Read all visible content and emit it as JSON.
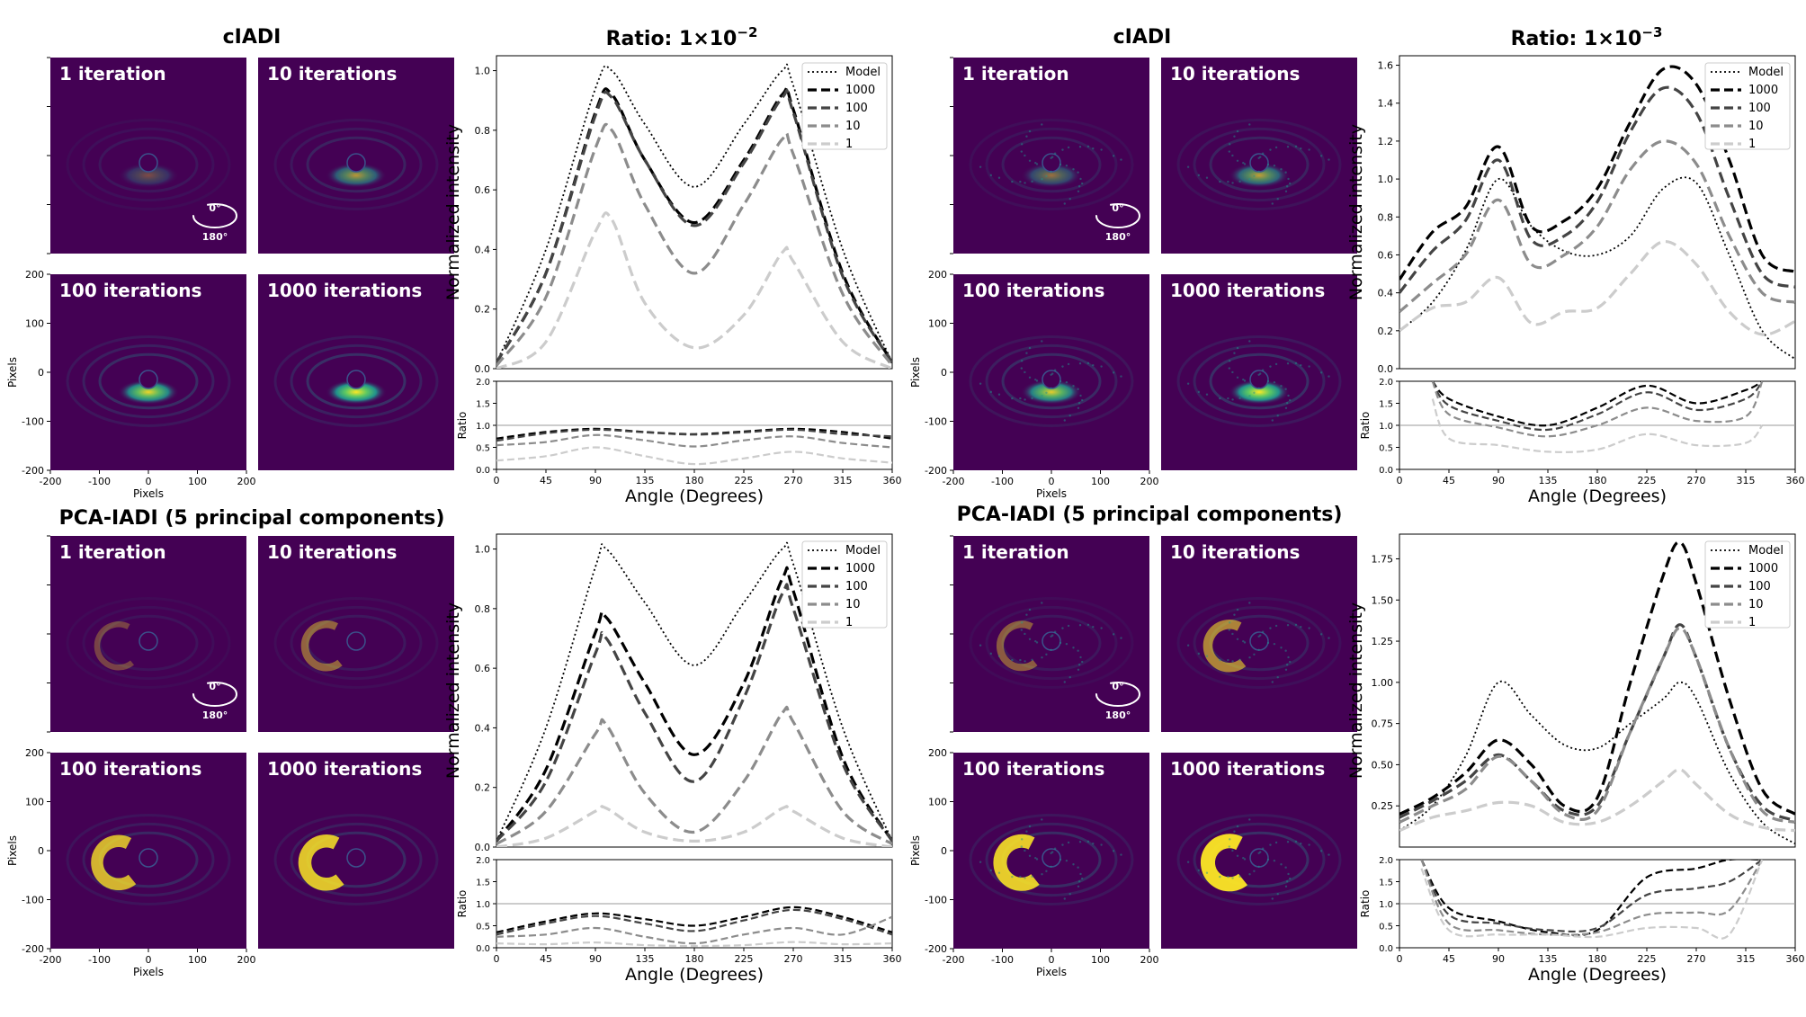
{
  "figure": {
    "column_titles": [
      "cIADI",
      "Ratio: 1×10",
      "cIADI",
      "Ratio: 1×10"
    ],
    "ratio_exponents": [
      "−2",
      "−3"
    ],
    "row_titles": [
      "PCA-IADI (5 principal components)",
      "PCA-IADI (5 principal components)"
    ],
    "panel_labels": [
      "1 iteration",
      "10 iterations",
      "100 iterations",
      "1000 iterations"
    ],
    "orientation_labels": [
      "0°",
      "180°"
    ],
    "image_axis": {
      "xlabel": "Pixels",
      "ylabel": "Pixels",
      "ticks": [
        "-200",
        "-100",
        "0",
        "100",
        "200"
      ]
    },
    "colors": {
      "colormap_low": "#440154",
      "colormap_mid": "#21918c",
      "colormap_high": "#fde725"
    }
  },
  "chart_data": [
    {
      "type": "line",
      "panel": "top-left profile, ratio 1×10^-2 (cIADI)",
      "xlabel": "Angle (Degrees)",
      "ylabel": "Normalized intensity",
      "xlim": [
        0,
        360
      ],
      "ylim": [
        0,
        1.05
      ],
      "xticks": [
        0,
        45,
        90,
        135,
        180,
        225,
        270,
        315,
        360
      ],
      "yticks": [
        0.0,
        0.2,
        0.4,
        0.6,
        0.8,
        1.0
      ],
      "x": [
        0,
        45,
        90,
        105,
        135,
        180,
        225,
        260,
        270,
        315,
        360
      ],
      "legend_position": "top-right",
      "series": [
        {
          "name": "Model",
          "style": "dotted",
          "color": "#000000",
          "values": [
            0.02,
            0.4,
            0.94,
            1.0,
            0.82,
            0.61,
            0.82,
            1.0,
            0.95,
            0.4,
            0.02
          ]
        },
        {
          "name": "1000",
          "style": "dashed",
          "color": "#000000",
          "values": [
            0.02,
            0.32,
            0.86,
            0.92,
            0.7,
            0.49,
            0.7,
            0.92,
            0.87,
            0.32,
            0.02
          ]
        },
        {
          "name": "100",
          "style": "dashed",
          "color": "#444444",
          "values": [
            0.02,
            0.32,
            0.85,
            0.91,
            0.7,
            0.48,
            0.69,
            0.91,
            0.86,
            0.31,
            0.02
          ]
        },
        {
          "name": "10",
          "style": "dashed",
          "color": "#8c8c8c",
          "values": [
            0.01,
            0.24,
            0.74,
            0.8,
            0.55,
            0.32,
            0.55,
            0.77,
            0.72,
            0.25,
            0.01
          ]
        },
        {
          "name": "1",
          "style": "dashed",
          "color": "#cccccc",
          "values": [
            0.0,
            0.09,
            0.46,
            0.5,
            0.22,
            0.07,
            0.18,
            0.39,
            0.36,
            0.09,
            0.0
          ]
        }
      ],
      "ratio_panel": {
        "ylabel": "Ratio",
        "ylim": [
          0,
          2.0
        ],
        "yticks": [
          0.0,
          0.5,
          1.0,
          1.5,
          2.0
        ],
        "reference": 1.0,
        "x": [
          0,
          45,
          90,
          135,
          180,
          225,
          270,
          315,
          360
        ],
        "series": [
          {
            "name": "1000",
            "values": [
              0.7,
              0.85,
              0.92,
              0.85,
              0.8,
              0.86,
              0.92,
              0.85,
              0.7
            ]
          },
          {
            "name": "100",
            "values": [
              0.65,
              0.82,
              0.9,
              0.84,
              0.79,
              0.84,
              0.9,
              0.8,
              0.75
            ]
          },
          {
            "name": "10",
            "values": [
              0.55,
              0.62,
              0.78,
              0.66,
              0.52,
              0.66,
              0.75,
              0.6,
              0.5
            ]
          },
          {
            "name": "1",
            "values": [
              0.2,
              0.3,
              0.5,
              0.3,
              0.12,
              0.25,
              0.4,
              0.25,
              0.15
            ]
          }
        ]
      }
    },
    {
      "type": "line",
      "panel": "top-right profile, ratio 1×10^-3 (cIADI)",
      "xlabel": "Angle (Degrees)",
      "ylabel": "Normalized intensity",
      "xlim": [
        0,
        360
      ],
      "ylim": [
        0,
        1.65
      ],
      "xticks": [
        0,
        45,
        90,
        135,
        180,
        225,
        270,
        315,
        360
      ],
      "yticks": [
        0.0,
        0.2,
        0.4,
        0.6,
        0.8,
        1.0,
        1.2,
        1.4,
        1.6
      ],
      "x": [
        0,
        30,
        60,
        90,
        120,
        150,
        180,
        210,
        240,
        270,
        300,
        330,
        360
      ],
      "legend_position": "top-right",
      "series": [
        {
          "name": "Model",
          "style": "dotted",
          "color": "#000000",
          "values": [
            0.2,
            0.35,
            0.62,
            1.0,
            0.75,
            0.62,
            0.6,
            0.7,
            0.95,
            0.98,
            0.6,
            0.2,
            0.05
          ]
        },
        {
          "name": "1000",
          "style": "dashed",
          "color": "#000000",
          "values": [
            0.47,
            0.72,
            0.85,
            1.17,
            0.75,
            0.78,
            0.95,
            1.3,
            1.58,
            1.5,
            1.1,
            0.6,
            0.51
          ]
        },
        {
          "name": "100",
          "style": "dashed",
          "color": "#444444",
          "values": [
            0.4,
            0.62,
            0.78,
            1.1,
            0.68,
            0.7,
            0.88,
            1.25,
            1.48,
            1.35,
            0.9,
            0.5,
            0.43
          ]
        },
        {
          "name": "10",
          "style": "dashed",
          "color": "#8c8c8c",
          "values": [
            0.3,
            0.45,
            0.6,
            0.89,
            0.55,
            0.6,
            0.75,
            1.05,
            1.2,
            1.08,
            0.7,
            0.4,
            0.35
          ]
        },
        {
          "name": "1",
          "style": "dashed",
          "color": "#cccccc",
          "values": [
            0.2,
            0.32,
            0.35,
            0.48,
            0.24,
            0.3,
            0.32,
            0.5,
            0.67,
            0.55,
            0.3,
            0.18,
            0.25
          ]
        }
      ],
      "ratio_panel": {
        "ylabel": "Ratio",
        "ylim": [
          0,
          2.0
        ],
        "yticks": [
          0.0,
          0.5,
          1.0,
          1.5,
          2.0
        ],
        "reference": 1.0,
        "x": [
          30,
          45,
          90,
          135,
          180,
          225,
          270,
          315,
          330
        ],
        "series": [
          {
            "name": "1000",
            "values": [
              2.0,
              1.6,
              1.2,
              1.0,
              1.4,
              1.9,
              1.5,
              1.8,
              2.0
            ]
          },
          {
            "name": "100",
            "values": [
              2.0,
              1.45,
              1.1,
              0.9,
              1.25,
              1.75,
              1.35,
              1.6,
              2.0
            ]
          },
          {
            "name": "10",
            "values": [
              2.0,
              1.25,
              0.95,
              0.75,
              1.0,
              1.4,
              1.1,
              1.2,
              2.0
            ]
          },
          {
            "name": "1",
            "values": [
              1.6,
              0.7,
              0.55,
              0.4,
              0.45,
              0.8,
              0.55,
              0.6,
              1.0
            ]
          }
        ]
      }
    },
    {
      "type": "line",
      "panel": "bottom-left profile, ratio 1×10^-2 (PCA-IADI)",
      "xlabel": "Angle (Degrees)",
      "ylabel": "Normalized intensity",
      "xlim": [
        0,
        360
      ],
      "ylim": [
        0,
        1.05
      ],
      "xticks": [
        0,
        45,
        90,
        135,
        180,
        225,
        270,
        315,
        360
      ],
      "yticks": [
        0.0,
        0.2,
        0.4,
        0.6,
        0.8,
        1.0
      ],
      "x": [
        0,
        45,
        90,
        100,
        135,
        180,
        225,
        260,
        270,
        315,
        360
      ],
      "legend_position": "top-right",
      "series": [
        {
          "name": "Model",
          "style": "dotted",
          "color": "#000000",
          "values": [
            0.02,
            0.4,
            0.94,
            1.0,
            0.82,
            0.61,
            0.82,
            1.0,
            0.95,
            0.4,
            0.02
          ]
        },
        {
          "name": "1000",
          "style": "dashed",
          "color": "#000000",
          "values": [
            0.02,
            0.26,
            0.72,
            0.77,
            0.55,
            0.31,
            0.55,
            0.9,
            0.86,
            0.3,
            0.02
          ]
        },
        {
          "name": "100",
          "style": "dashed",
          "color": "#444444",
          "values": [
            0.02,
            0.22,
            0.65,
            0.7,
            0.45,
            0.22,
            0.5,
            0.85,
            0.8,
            0.28,
            0.02
          ]
        },
        {
          "name": "10",
          "style": "dashed",
          "color": "#8c8c8c",
          "values": [
            0.01,
            0.12,
            0.38,
            0.41,
            0.18,
            0.05,
            0.22,
            0.45,
            0.42,
            0.12,
            0.01
          ]
        },
        {
          "name": "1",
          "style": "dashed",
          "color": "#cccccc",
          "values": [
            0.0,
            0.03,
            0.12,
            0.13,
            0.05,
            0.02,
            0.05,
            0.13,
            0.12,
            0.03,
            0.0
          ]
        }
      ],
      "ratio_panel": {
        "ylabel": "Ratio",
        "ylim": [
          0,
          2.0
        ],
        "yticks": [
          0.0,
          0.5,
          1.0,
          1.5,
          2.0
        ],
        "reference": 1.0,
        "x": [
          0,
          45,
          90,
          135,
          180,
          225,
          270,
          315,
          360
        ],
        "series": [
          {
            "name": "1000",
            "values": [
              0.35,
              0.6,
              0.78,
              0.65,
              0.5,
              0.7,
              0.92,
              0.7,
              0.35
            ]
          },
          {
            "name": "100",
            "values": [
              0.3,
              0.55,
              0.72,
              0.55,
              0.38,
              0.62,
              0.86,
              0.65,
              0.3
            ]
          },
          {
            "name": "10",
            "values": [
              0.25,
              0.3,
              0.45,
              0.25,
              0.1,
              0.3,
              0.45,
              0.3,
              0.7
            ]
          },
          {
            "name": "1",
            "values": [
              0.1,
              0.08,
              0.12,
              0.06,
              0.04,
              0.06,
              0.13,
              0.08,
              0.1
            ]
          }
        ]
      }
    },
    {
      "type": "line",
      "panel": "bottom-right profile, ratio 1×10^-3 (PCA-IADI)",
      "xlabel": "Angle (Degrees)",
      "ylabel": "Normalized intensity",
      "xlim": [
        0,
        360
      ],
      "ylim": [
        0,
        1.9
      ],
      "xticks": [
        0,
        45,
        90,
        135,
        180,
        225,
        270,
        315,
        360
      ],
      "yticks": [
        0.25,
        0.5,
        0.75,
        1.0,
        1.25,
        1.5,
        1.75
      ],
      "x": [
        0,
        30,
        60,
        90,
        120,
        150,
        180,
        210,
        240,
        255,
        270,
        300,
        330,
        360
      ],
      "legend_position": "top-right",
      "series": [
        {
          "name": "Model",
          "style": "dotted",
          "color": "#000000",
          "values": [
            0.1,
            0.25,
            0.55,
            1.0,
            0.8,
            0.62,
            0.6,
            0.75,
            0.9,
            1.0,
            0.9,
            0.45,
            0.15,
            0.02
          ]
        },
        {
          "name": "1000",
          "style": "dashed",
          "color": "#000000",
          "values": [
            0.2,
            0.3,
            0.45,
            0.65,
            0.5,
            0.25,
            0.3,
            1.0,
            1.65,
            1.85,
            1.6,
            0.9,
            0.35,
            0.2
          ]
        },
        {
          "name": "100",
          "style": "dashed",
          "color": "#444444",
          "values": [
            0.18,
            0.28,
            0.4,
            0.56,
            0.4,
            0.22,
            0.25,
            0.7,
            1.15,
            1.35,
            1.15,
            0.6,
            0.25,
            0.16
          ]
        },
        {
          "name": "10",
          "style": "dashed",
          "color": "#8c8c8c",
          "values": [
            0.15,
            0.25,
            0.35,
            0.55,
            0.4,
            0.2,
            0.22,
            0.7,
            1.15,
            1.33,
            1.15,
            0.6,
            0.22,
            0.15
          ]
        },
        {
          "name": "1",
          "style": "dashed",
          "color": "#cccccc",
          "values": [
            0.1,
            0.18,
            0.22,
            0.27,
            0.25,
            0.15,
            0.15,
            0.25,
            0.4,
            0.47,
            0.38,
            0.2,
            0.12,
            0.1
          ]
        }
      ],
      "ratio_panel": {
        "ylabel": "Ratio",
        "ylim": [
          0,
          2.0
        ],
        "yticks": [
          0.0,
          0.5,
          1.0,
          1.5,
          2.0
        ],
        "reference": 1.0,
        "x": [
          20,
          45,
          90,
          135,
          180,
          225,
          270,
          300,
          330
        ],
        "series": [
          {
            "name": "1000",
            "values": [
              2.0,
              0.9,
              0.6,
              0.35,
              0.4,
              1.6,
              1.8,
              2.0,
              2.0
            ]
          },
          {
            "name": "100",
            "values": [
              2.0,
              0.75,
              0.55,
              0.4,
              0.45,
              1.2,
              1.35,
              1.5,
              2.0
            ]
          },
          {
            "name": "10",
            "values": [
              2.0,
              0.55,
              0.4,
              0.3,
              0.35,
              0.75,
              0.8,
              0.85,
              2.0
            ]
          },
          {
            "name": "1",
            "values": [
              1.8,
              0.4,
              0.3,
              0.3,
              0.25,
              0.45,
              0.45,
              0.3,
              2.0
            ]
          }
        ]
      }
    }
  ]
}
